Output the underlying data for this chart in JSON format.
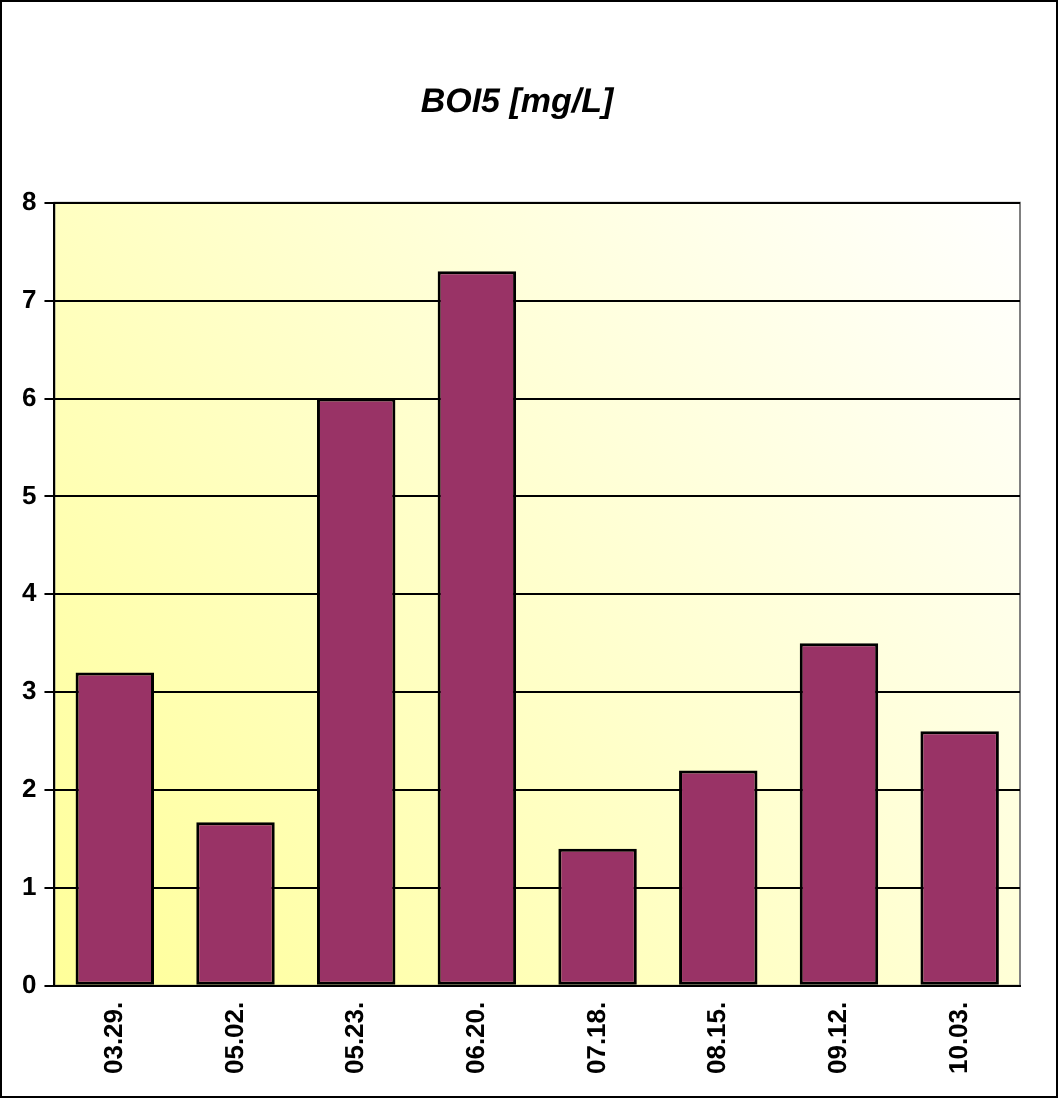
{
  "chart_data": {
    "type": "bar",
    "title": "BOI5 [mg/L]",
    "categories": [
      "03.29.",
      "05.02.",
      "05.23.",
      "06.20.",
      "07.18.",
      "08.15.",
      "09.12.",
      "10.03."
    ],
    "values": [
      3.2,
      1.67,
      6.0,
      7.3,
      1.4,
      2.2,
      3.5,
      2.6
    ],
    "color": "#993366",
    "ylim": [
      0,
      8
    ],
    "yticks": [
      0,
      1,
      2,
      3,
      4,
      5,
      6,
      7,
      8
    ],
    "grid": "y",
    "legend": false
  }
}
